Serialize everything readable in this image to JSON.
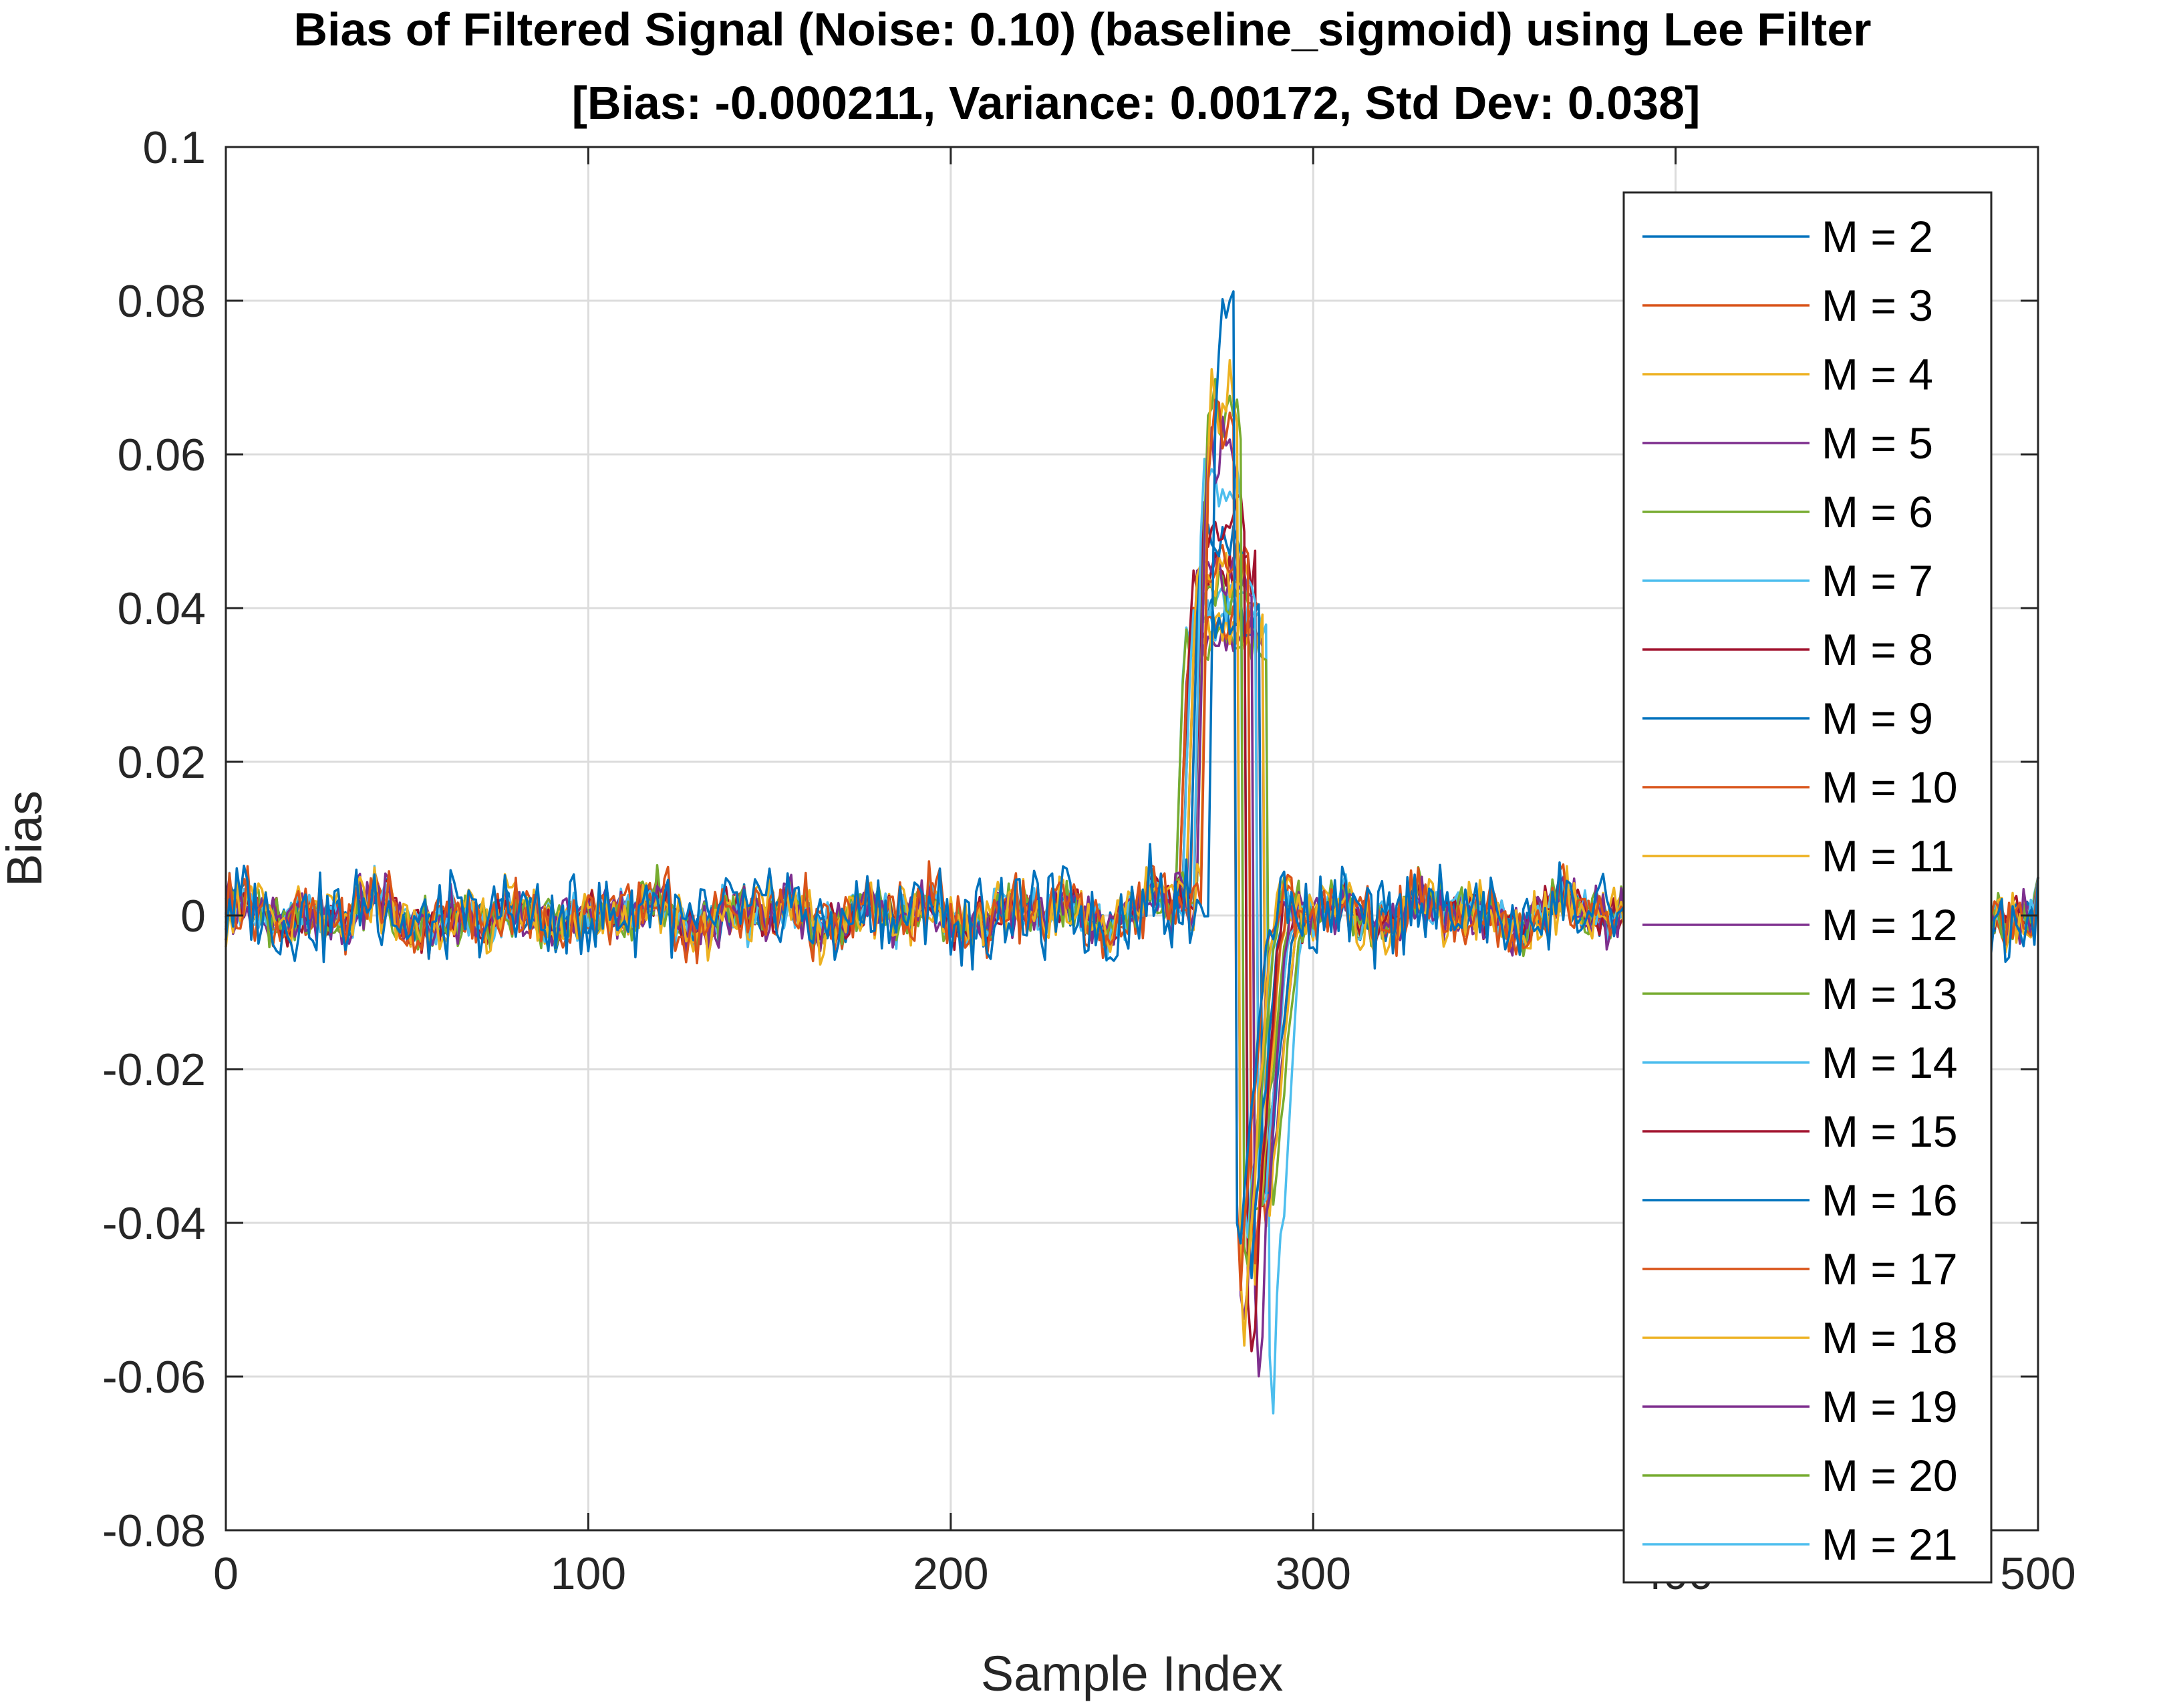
{
  "chart_data": {
    "type": "line",
    "title": "Bias of Filtered Signal (Noise: 0.10) (baseline_sigmoid) using Lee Filter",
    "subtitle": "[Bias: -0.000211, Variance: 0.00172, Std Dev: 0.038]",
    "xlabel": "Sample Index",
    "ylabel": "Bias",
    "xlim": [
      0,
      500
    ],
    "ylim": [
      -0.08,
      0.1
    ],
    "xticks": [
      0,
      100,
      200,
      300,
      400,
      500
    ],
    "xtick_labels": [
      "0",
      "100",
      "200",
      "300",
      "400",
      "500"
    ],
    "yticks": [
      -0.08,
      -0.06,
      -0.04,
      -0.02,
      0,
      0.02,
      0.04,
      0.06,
      0.08,
      0.1
    ],
    "ytick_labels": [
      "-0.08",
      "-0.06",
      "-0.04",
      "-0.02",
      "0",
      "0.02",
      "0.04",
      "0.06",
      "0.08",
      "0.1"
    ],
    "grid": true,
    "legend_position": "top-right",
    "palette": [
      "#0072BD",
      "#D95319",
      "#EDB120",
      "#7E2F8E",
      "#77AC30",
      "#4DBEEE",
      "#A2142F"
    ],
    "series": [
      {
        "name": "M = 2",
        "color": "#0072BD",
        "noise_amp": 0.005,
        "peak": 0.083,
        "trough": -0.045,
        "rise": 274,
        "fall": 279
      },
      {
        "name": "M = 3",
        "color": "#D95319",
        "noise_amp": 0.004,
        "peak": 0.07,
        "trough": -0.05,
        "rise": 272,
        "fall": 279
      },
      {
        "name": "M = 4",
        "color": "#EDB120",
        "noise_amp": 0.0036,
        "peak": 0.073,
        "trough": -0.058,
        "rise": 272,
        "fall": 280
      },
      {
        "name": "M = 5",
        "color": "#7E2F8E",
        "noise_amp": 0.0032,
        "peak": 0.065,
        "trough": -0.055,
        "rise": 271,
        "fall": 280
      },
      {
        "name": "M = 6",
        "color": "#77AC30",
        "noise_amp": 0.003,
        "peak": 0.072,
        "trough": -0.05,
        "rise": 271,
        "fall": 281
      },
      {
        "name": "M = 7",
        "color": "#4DBEEE",
        "noise_amp": 0.0028,
        "peak": 0.062,
        "trough": -0.048,
        "rise": 270,
        "fall": 281
      },
      {
        "name": "M = 8",
        "color": "#A2142F",
        "noise_amp": 0.0026,
        "peak": 0.055,
        "trough": -0.062,
        "rise": 270,
        "fall": 282
      },
      {
        "name": "M = 9",
        "color": "#0072BD",
        "noise_amp": 0.0025,
        "peak": 0.052,
        "trough": -0.048,
        "rise": 269,
        "fall": 282
      },
      {
        "name": "M = 10",
        "color": "#D95319",
        "noise_amp": 0.0024,
        "peak": 0.05,
        "trough": -0.046,
        "rise": 269,
        "fall": 283
      },
      {
        "name": "M = 11",
        "color": "#EDB120",
        "noise_amp": 0.0023,
        "peak": 0.048,
        "trough": -0.052,
        "rise": 268,
        "fall": 283
      },
      {
        "name": "M = 12",
        "color": "#7E2F8E",
        "noise_amp": 0.0022,
        "peak": 0.047,
        "trough": -0.063,
        "rise": 268,
        "fall": 284
      },
      {
        "name": "M = 13",
        "color": "#77AC30",
        "noise_amp": 0.0021,
        "peak": 0.045,
        "trough": -0.045,
        "rise": 268,
        "fall": 284
      },
      {
        "name": "M = 14",
        "color": "#4DBEEE",
        "noise_amp": 0.002,
        "peak": 0.044,
        "trough": -0.044,
        "rise": 267,
        "fall": 285
      },
      {
        "name": "M = 15",
        "color": "#A2142F",
        "noise_amp": 0.0019,
        "peak": 0.048,
        "trough": -0.043,
        "rise": 267,
        "fall": 285
      },
      {
        "name": "M = 16",
        "color": "#0072BD",
        "noise_amp": 0.0018,
        "peak": 0.042,
        "trough": -0.042,
        "rise": 267,
        "fall": 286
      },
      {
        "name": "M = 17",
        "color": "#D95319",
        "noise_amp": 0.0018,
        "peak": 0.041,
        "trough": -0.041,
        "rise": 266,
        "fall": 286
      },
      {
        "name": "M = 18",
        "color": "#EDB120",
        "noise_amp": 0.0017,
        "peak": 0.04,
        "trough": -0.04,
        "rise": 266,
        "fall": 287
      },
      {
        "name": "M = 19",
        "color": "#7E2F8E",
        "noise_amp": 0.0017,
        "peak": 0.039,
        "trough": -0.04,
        "rise": 266,
        "fall": 287
      },
      {
        "name": "M = 20",
        "color": "#77AC30",
        "noise_amp": 0.0016,
        "peak": 0.038,
        "trough": -0.039,
        "rise": 265,
        "fall": 288
      },
      {
        "name": "M = 21",
        "color": "#4DBEEE",
        "noise_amp": 0.0016,
        "peak": 0.041,
        "trough": -0.066,
        "rise": 265,
        "fall": 288
      }
    ]
  }
}
